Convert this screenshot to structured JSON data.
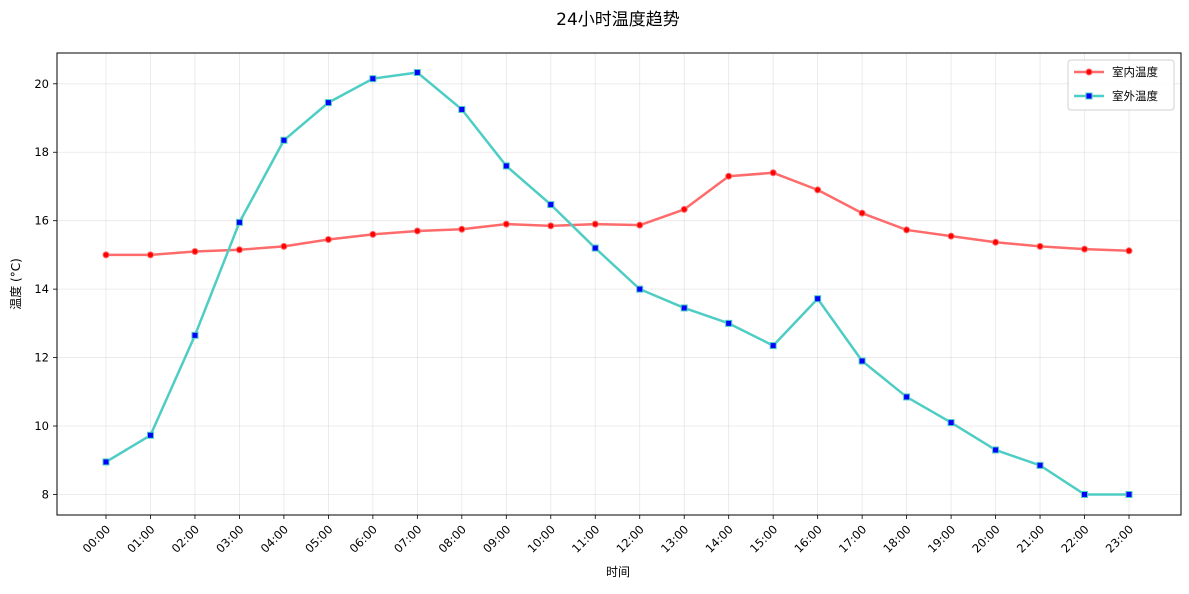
{
  "chart_data": {
    "type": "line",
    "title": "24小时温度趋势",
    "xlabel": "时间",
    "ylabel": "温度 (°C)",
    "categories": [
      "00:00",
      "01:00",
      "02:00",
      "03:00",
      "04:00",
      "05:00",
      "06:00",
      "07:00",
      "08:00",
      "09:00",
      "10:00",
      "11:00",
      "12:00",
      "13:00",
      "14:00",
      "15:00",
      "16:00",
      "17:00",
      "18:00",
      "19:00",
      "20:00",
      "21:00",
      "22:00",
      "23:00"
    ],
    "ylim": [
      7.4,
      20.9
    ],
    "yticks": [
      8,
      10,
      12,
      14,
      16,
      18,
      20
    ],
    "grid": true,
    "legend_position": "top-right",
    "series": [
      {
        "name": "室内温度",
        "color": "#ff6b6b",
        "marker": "circle",
        "marker_color": "#ff0000",
        "values": [
          15.0,
          15.0,
          15.1,
          15.15,
          15.25,
          15.45,
          15.6,
          15.7,
          15.75,
          15.9,
          15.85,
          15.9,
          15.87,
          16.33,
          17.3,
          17.4,
          16.9,
          16.22,
          15.73,
          15.55,
          15.37,
          15.25,
          15.17,
          15.12
        ]
      },
      {
        "name": "室外温度",
        "color": "#4ecdc4",
        "marker": "square",
        "marker_color": "#0000ff",
        "values": [
          8.95,
          9.73,
          12.65,
          15.95,
          18.35,
          19.45,
          20.15,
          20.33,
          19.25,
          17.6,
          16.47,
          15.2,
          14.0,
          13.45,
          13.0,
          12.35,
          13.72,
          11.9,
          10.85,
          10.1,
          9.3,
          8.85,
          8.0,
          8.0
        ]
      }
    ]
  }
}
